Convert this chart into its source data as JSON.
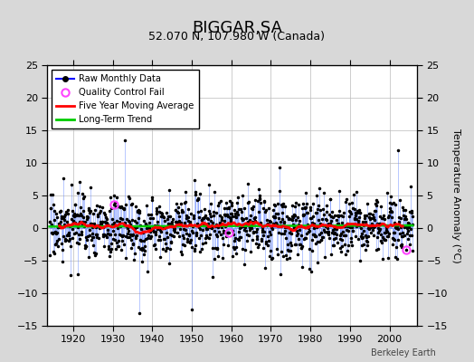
{
  "title": "BIGGAR,SA",
  "subtitle": "52.070 N, 107.980 W (Canada)",
  "ylabel": "Temperature Anomaly (°C)",
  "watermark": "Berkeley Earth",
  "xlim": [
    1913.5,
    2007
  ],
  "ylim": [
    -15,
    25
  ],
  "yticks": [
    -15,
    -10,
    -5,
    0,
    5,
    10,
    15,
    20,
    25
  ],
  "xticks": [
    1920,
    1930,
    1940,
    1950,
    1960,
    1970,
    1980,
    1990,
    2000
  ],
  "start_year": 1914,
  "end_year": 2006,
  "background_color": "#d8d8d8",
  "plot_bg_color": "#ffffff",
  "stem_color": "#6688ff",
  "dot_color": "#000000",
  "moving_avg_color": "#ff0000",
  "trend_color": "#00cc00",
  "qc_color": "#ff44ff",
  "title_fontsize": 13,
  "subtitle_fontsize": 9,
  "tick_labelsize": 8,
  "ylabel_fontsize": 8
}
